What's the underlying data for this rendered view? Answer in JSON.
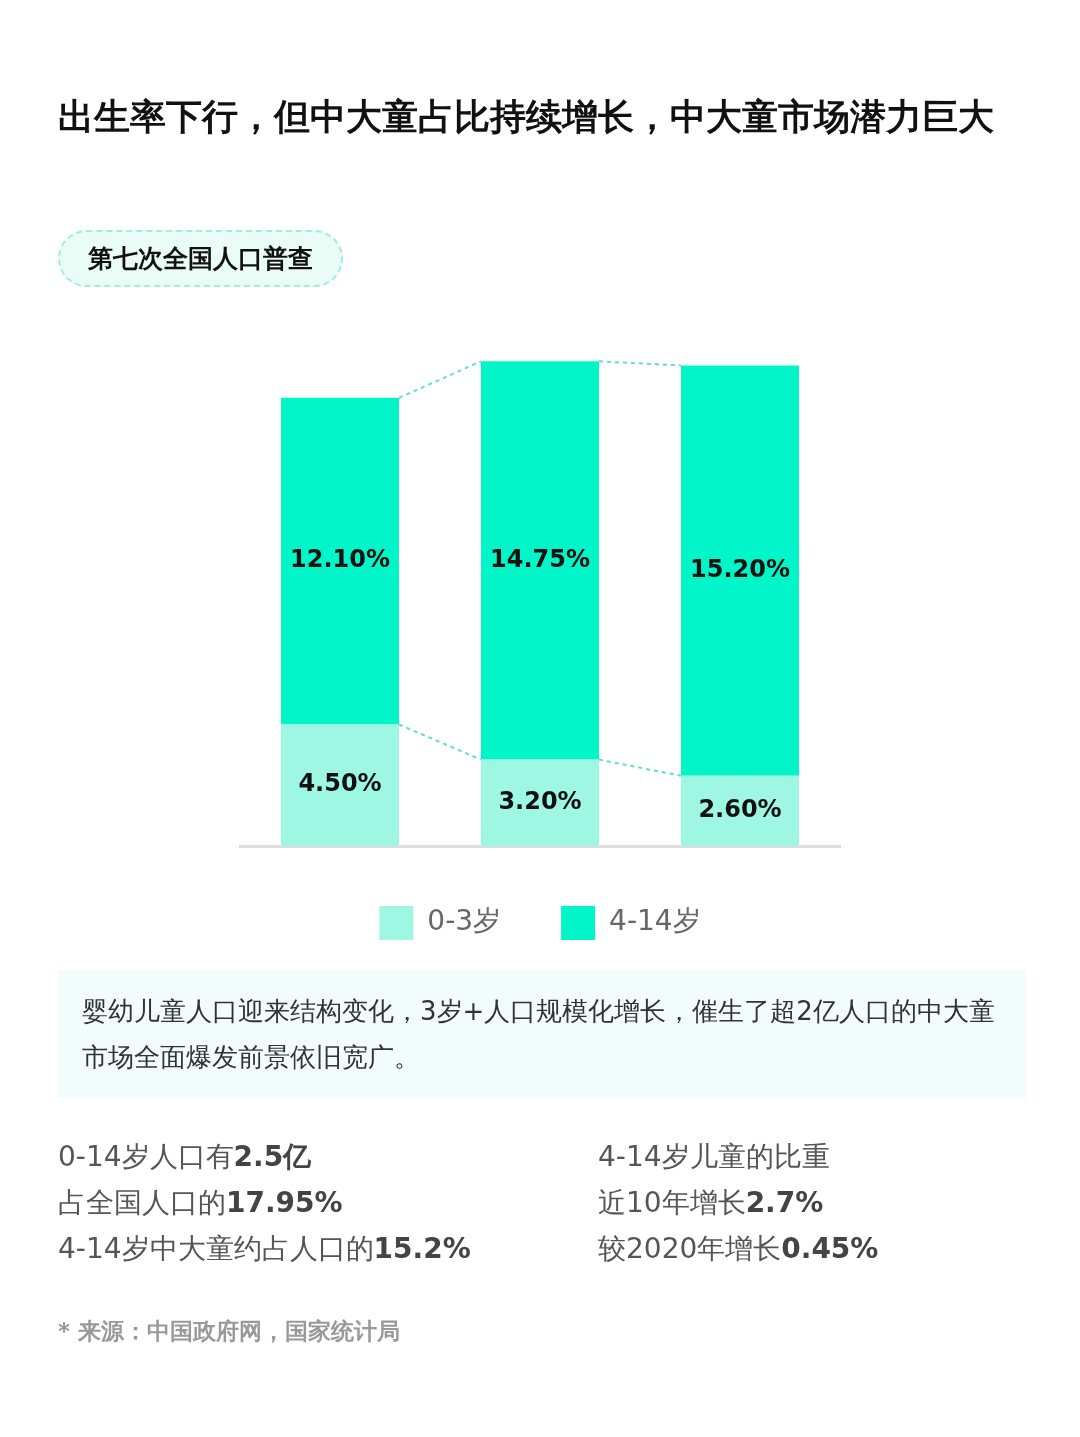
{
  "chart_data": {
    "type": "bar",
    "title": "出生率下行，但中大童占比持续增长，中大童市场潜力巨大",
    "subtitle": "第七次全国人口普查",
    "categories": [
      null,
      null,
      null
    ],
    "stacked": true,
    "legend": "bottom",
    "grid": false,
    "series": [
      {
        "name": "0-3岁",
        "color": "#9ef7e3",
        "values": [
          4.5,
          3.2,
          2.6
        ],
        "value_labels": [
          "4.50%",
          "3.20%",
          "2.60%"
        ]
      },
      {
        "name": "4-14岁",
        "color": "#00f5c8",
        "values": [
          12.1,
          14.75,
          15.2
        ],
        "value_labels": [
          "12.10%",
          "14.75%",
          "15.20%"
        ]
      }
    ],
    "annotations": [
      "婴幼儿童人口迎来结构变化，3岁+人口规模化增长，催生了超2亿人口的中大童市场全面爆发前景依旧宽广。",
      "0-14岁人口有2.5亿",
      "4-14岁儿童的比重",
      "占全国人口的17.95%",
      "近10年增长2.7%",
      "4-14岁中大童约占人口的15.2%",
      "较2020年增长0.45%",
      "* 来源：中国政府网，国家统计局"
    ]
  }
}
